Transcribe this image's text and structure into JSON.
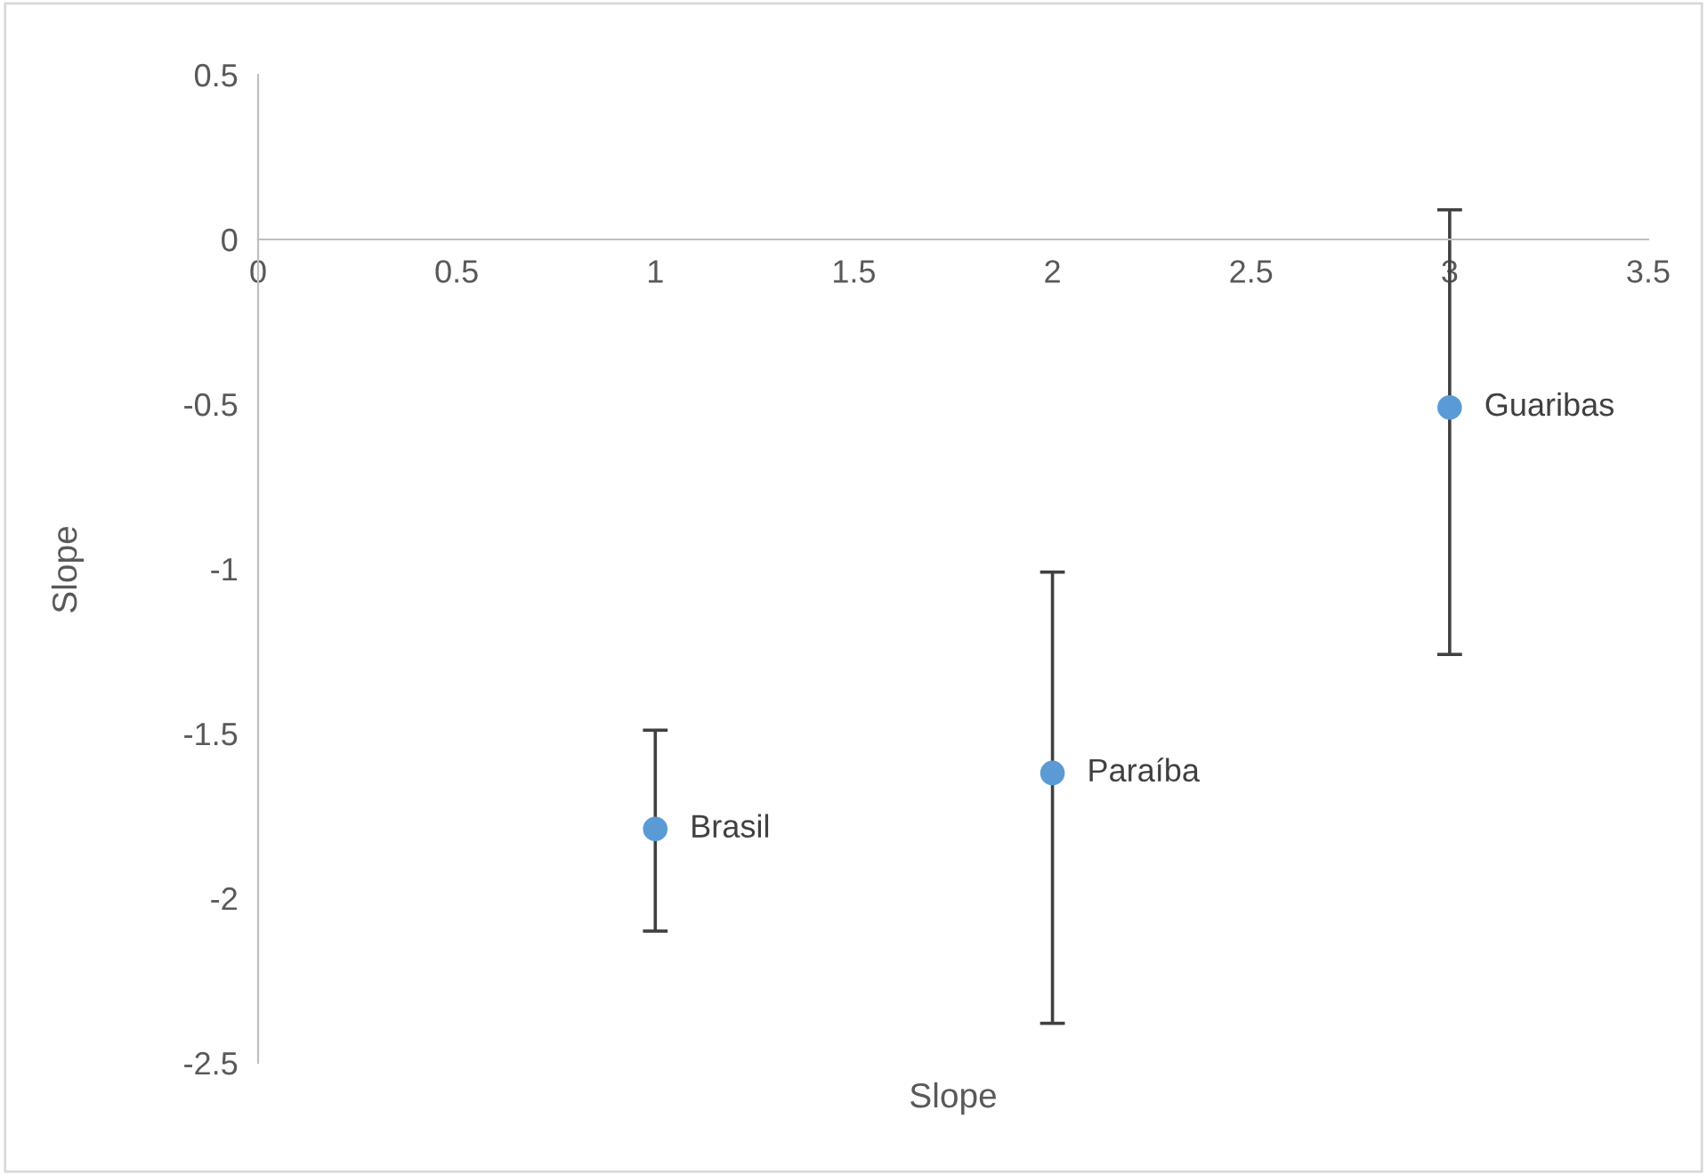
{
  "chart_data": {
    "type": "scatter",
    "xlabel": "Slope",
    "ylabel": "Slope",
    "x": [
      1,
      2,
      3
    ],
    "values": [
      -1.79,
      -1.62,
      -0.51
    ],
    "errors": [
      [
        -2.1,
        -1.49
      ],
      [
        -2.38,
        -1.01
      ],
      [
        -1.26,
        0.09
      ]
    ],
    "color": "#5b9bd5",
    "marker": "circle",
    "grid": false,
    "legend": false,
    "xlim": [
      0,
      3.5
    ],
    "xticks": [
      0,
      0.5,
      1,
      1.5,
      2,
      2.5,
      3,
      3.5
    ],
    "ylim": [
      -2.5,
      0.5
    ],
    "yticks": [
      -2.5,
      -2,
      -1.5,
      -1,
      -0.5,
      0,
      0.5
    ],
    "annotations": [
      {
        "text": "Brasil",
        "x": 1,
        "y": -1.79
      },
      {
        "text": "Paraíba",
        "x": 2,
        "y": -1.62
      },
      {
        "text": "Guaribas",
        "x": 3,
        "y": -0.51
      }
    ]
  }
}
